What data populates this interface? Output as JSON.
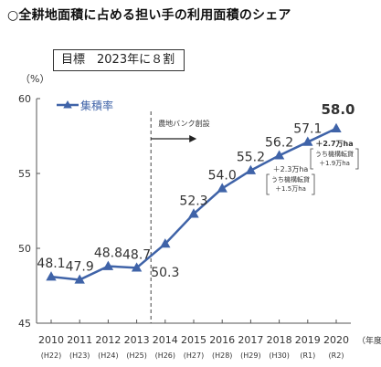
{
  "title": "○全耕地面積に占める担い手の利用面積のシェア",
  "target_label": "目標　2023年に８割",
  "colors": {
    "line": "#3f63a8",
    "marker": "#3f63a8",
    "text": "#333333"
  },
  "chart_data": {
    "type": "line",
    "title": "○全耕地面積に占める担い手の利用面積のシェア",
    "ylabel": "（%）",
    "xlabel": "（年度）",
    "ylim": [
      45,
      60
    ],
    "yticks": [
      45,
      50,
      55,
      60
    ],
    "grid": false,
    "legend": "top-left",
    "categories": [
      "2010",
      "2011",
      "2012",
      "2013",
      "2014",
      "2015",
      "2016",
      "2017",
      "2018",
      "2019",
      "2020"
    ],
    "era_labels": [
      "(H22)",
      "(H23)",
      "(H24)",
      "(H25)",
      "(H26)",
      "(H27)",
      "(H28)",
      "(H29)",
      "(H30)",
      "(R1)",
      "(R2)"
    ],
    "series": [
      {
        "name": "集積率",
        "values": [
          48.1,
          47.9,
          48.8,
          48.7,
          50.3,
          52.3,
          54.0,
          55.2,
          56.2,
          57.1,
          58.0
        ]
      }
    ],
    "data_labels": [
      "48.1",
      "47.9",
      "48.8",
      "48.7",
      "50.3",
      "52.3",
      "54.0",
      "55.2",
      "56.2",
      "57.1",
      "58.0"
    ],
    "annotations": {
      "policy_label": "農地バンク創設",
      "policy_year": "2014",
      "notes": [
        {
          "year": "2019",
          "lines": [
            "＋2.3万ha",
            "うち機構転貸",
            "＋1.5万ha"
          ]
        },
        {
          "year": "2020",
          "lines": [
            "＋2.7万ha",
            "うち機構転貸",
            "＋1.9万ha"
          ]
        }
      ]
    }
  }
}
